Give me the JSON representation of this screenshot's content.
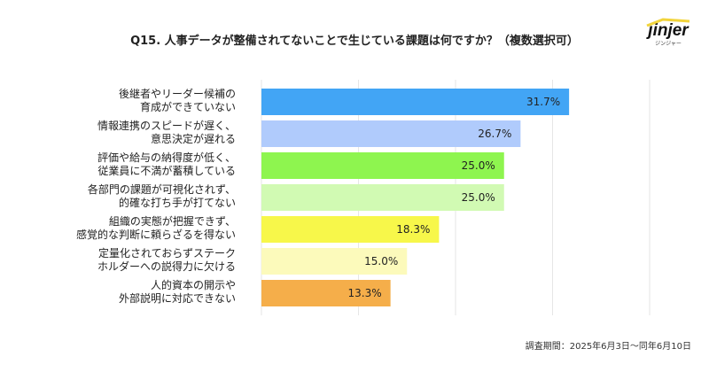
{
  "chart_data": {
    "type": "bar",
    "orientation": "horizontal",
    "title": "Q15. 人事データが整備されてないことで生じている課題は何ですか？（複数選択可）",
    "categories": [
      [
        "後継者やリーダー候補の",
        "育成ができていない"
      ],
      [
        "情報連携のスピードが遅く、",
        "意思決定が遅れる"
      ],
      [
        "評価や給与の納得度が低く、",
        "従業員に不満が蓄積している"
      ],
      [
        "各部門の課題が可視化されず、",
        "的確な打ち手が打てない"
      ],
      [
        "組織の実態が把握できず、",
        "感覚的な判断に頼らざるを得ない"
      ],
      [
        "定量化されておらずステーク",
        "ホルダーへの説得力に欠ける"
      ],
      [
        "人的資本の開示や",
        "外部説明に対応できない"
      ]
    ],
    "values": [
      31.7,
      26.7,
      25.0,
      25.0,
      18.3,
      15.0,
      13.3
    ],
    "value_labels": [
      "31.7%",
      "26.7%",
      "25.0%",
      "25.0%",
      "18.3%",
      "15.0%",
      "13.3%"
    ],
    "colors": [
      "#42a5f5",
      "#b0cbfc",
      "#8ef54f",
      "#d1fab3",
      "#f7f74a",
      "#fcfabb",
      "#f5ae4a"
    ],
    "xlim": [
      0,
      40
    ],
    "grid_step": 10,
    "grid": true,
    "xlabel": "",
    "ylabel": ""
  },
  "logo": {
    "word": "jinjer",
    "sub": "ジンジャー"
  },
  "footer": "調査期間：2025年6月3日〜同年6月10日"
}
